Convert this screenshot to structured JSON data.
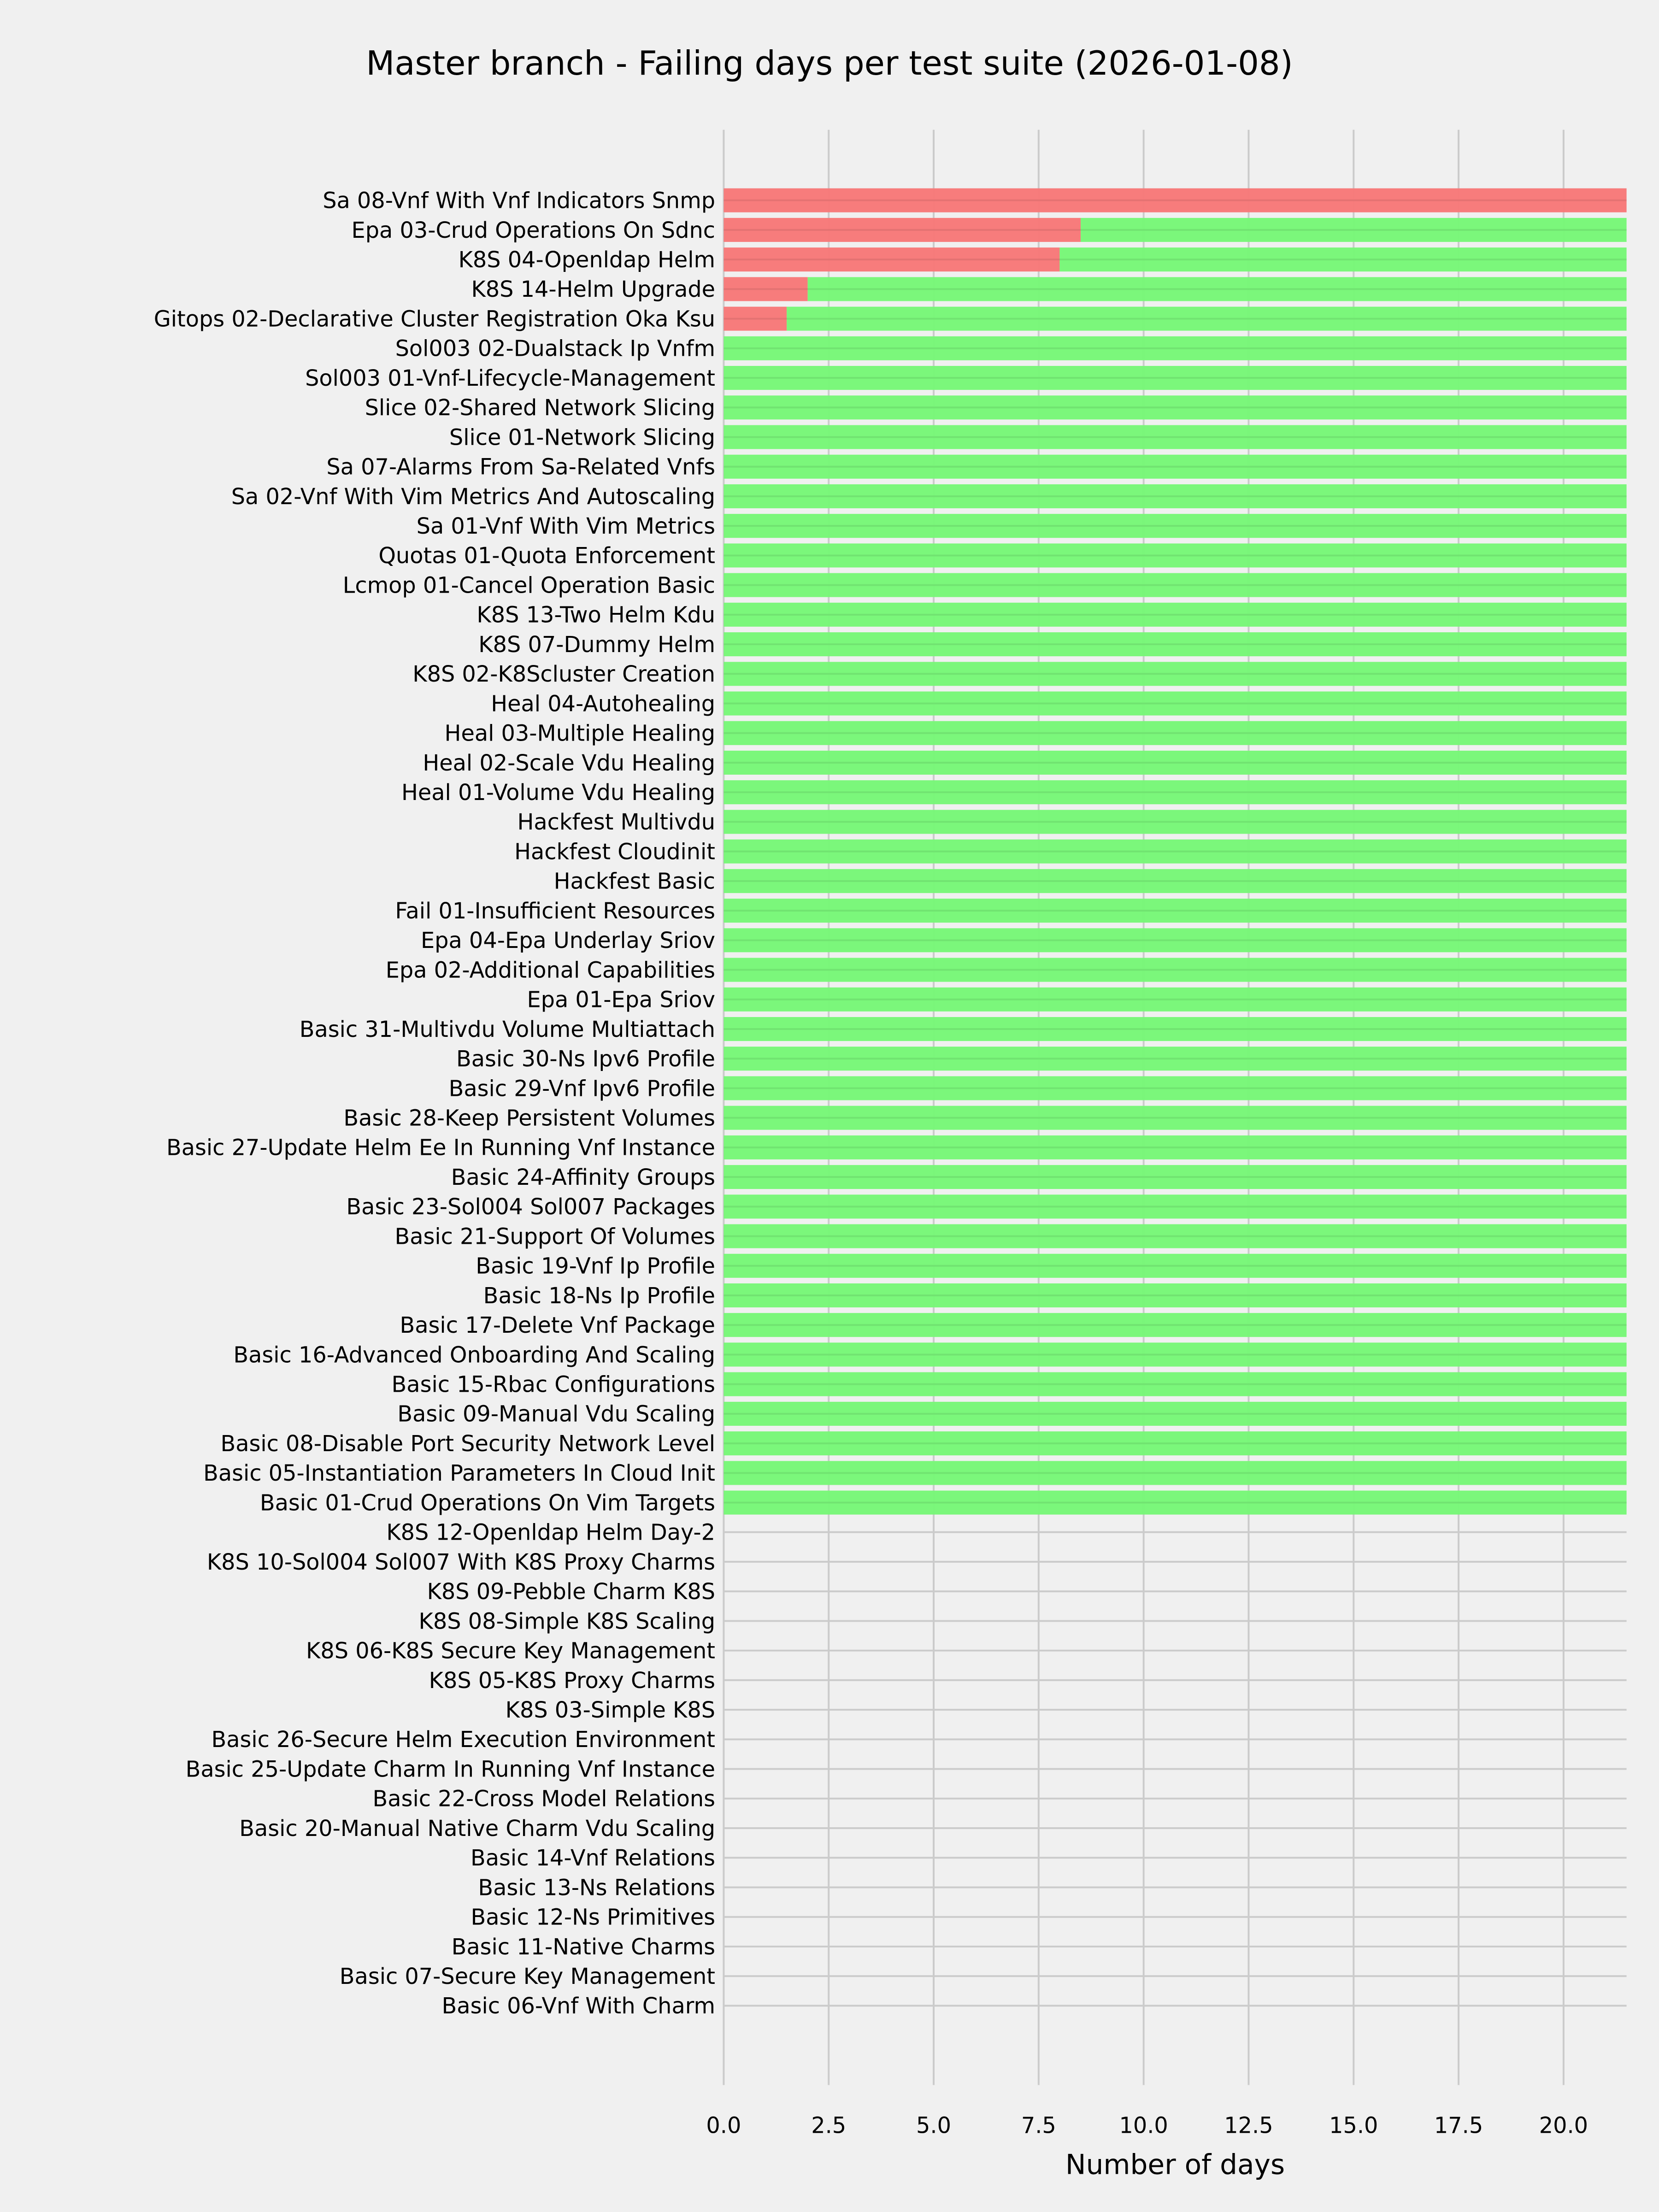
{
  "chart_data": {
    "type": "bar",
    "orientation": "horizontal",
    "stacked": true,
    "title": "Master branch - Failing days per test suite (2026-01-08)",
    "xlabel": "Number of days",
    "ylabel": "",
    "xlim": [
      0,
      21.5
    ],
    "xticks": [
      "0.0",
      "2.5",
      "5.0",
      "7.5",
      "10.0",
      "12.5",
      "15.0",
      "17.5",
      "20.0"
    ],
    "grid": true,
    "colors": {
      "failing": "#f77878",
      "passing": "#77f777",
      "background": "#f0f0f0",
      "grid": "#cbcbcb"
    },
    "categories": [
      "Sa 08-Vnf With Vnf Indicators Snmp",
      "Epa 03-Crud Operations On Sdnc",
      "K8S 04-Openldap Helm",
      "K8S 14-Helm Upgrade",
      "Gitops 02-Declarative Cluster Registration Oka Ksu",
      "Sol003 02-Dualstack Ip Vnfm",
      "Sol003 01-Vnf-Lifecycle-Management",
      "Slice 02-Shared Network Slicing",
      "Slice 01-Network Slicing",
      "Sa 07-Alarms From Sa-Related Vnfs",
      "Sa 02-Vnf With Vim Metrics And Autoscaling",
      "Sa 01-Vnf With Vim Metrics",
      "Quotas 01-Quota Enforcement",
      "Lcmop 01-Cancel Operation Basic",
      "K8S 13-Two Helm Kdu",
      "K8S 07-Dummy Helm",
      "K8S 02-K8Scluster Creation",
      "Heal 04-Autohealing",
      "Heal 03-Multiple Healing",
      "Heal 02-Scale Vdu Healing",
      "Heal 01-Volume Vdu Healing",
      "Hackfest Multivdu",
      "Hackfest Cloudinit",
      "Hackfest Basic",
      "Fail 01-Insufficient Resources",
      "Epa 04-Epa Underlay Sriov",
      "Epa 02-Additional Capabilities",
      "Epa 01-Epa Sriov",
      "Basic 31-Multivdu Volume Multiattach",
      "Basic 30-Ns Ipv6 Profile",
      "Basic 29-Vnf Ipv6 Profile",
      "Basic 28-Keep Persistent Volumes",
      "Basic 27-Update Helm Ee In Running Vnf Instance",
      "Basic 24-Affinity Groups",
      "Basic 23-Sol004 Sol007 Packages",
      "Basic 21-Support Of Volumes",
      "Basic 19-Vnf Ip Profile",
      "Basic 18-Ns Ip Profile",
      "Basic 17-Delete Vnf Package",
      "Basic 16-Advanced Onboarding And Scaling",
      "Basic 15-Rbac Configurations",
      "Basic 09-Manual Vdu Scaling",
      "Basic 08-Disable Port Security Network Level",
      "Basic 05-Instantiation Parameters In Cloud Init",
      "Basic 01-Crud Operations On Vim Targets",
      "K8S 12-Openldap Helm Day-2",
      "K8S 10-Sol004 Sol007 With K8S Proxy Charms",
      "K8S 09-Pebble Charm K8S",
      "K8S 08-Simple K8S Scaling",
      "K8S 06-K8S Secure Key Management",
      "K8S 05-K8S Proxy Charms",
      "K8S 03-Simple K8S",
      "Basic 26-Secure Helm Execution Environment",
      "Basic 25-Update Charm In Running Vnf Instance",
      "Basic 22-Cross Model Relations",
      "Basic 20-Manual Native Charm Vdu Scaling",
      "Basic 14-Vnf Relations",
      "Basic 13-Ns Relations",
      "Basic 12-Ns Primitives",
      "Basic 11-Native Charms",
      "Basic 07-Secure Key Management",
      "Basic 06-Vnf With Charm"
    ],
    "series": [
      {
        "key": "failing",
        "values": [
          21.5,
          8.5,
          8,
          2,
          1.5,
          0,
          0,
          0,
          0,
          0,
          0,
          0,
          0,
          0,
          0,
          0,
          0,
          0,
          0,
          0,
          0,
          0,
          0,
          0,
          0,
          0,
          0,
          0,
          0,
          0,
          0,
          0,
          0,
          0,
          0,
          0,
          0,
          0,
          0,
          0,
          0,
          0,
          0,
          0,
          0,
          0,
          0,
          0,
          0,
          0,
          0,
          0,
          0,
          0,
          0,
          0,
          0,
          0,
          0,
          0,
          0,
          0
        ]
      },
      {
        "key": "passing",
        "values": [
          0,
          13,
          13.5,
          19.5,
          20,
          21.5,
          21.5,
          21.5,
          21.5,
          21.5,
          21.5,
          21.5,
          21.5,
          21.5,
          21.5,
          21.5,
          21.5,
          21.5,
          21.5,
          21.5,
          21.5,
          21.5,
          21.5,
          21.5,
          21.5,
          21.5,
          21.5,
          21.5,
          21.5,
          21.5,
          21.5,
          21.5,
          21.5,
          21.5,
          21.5,
          21.5,
          21.5,
          21.5,
          21.5,
          21.5,
          21.5,
          21.5,
          21.5,
          21.5,
          21.5,
          0,
          0,
          0,
          0,
          0,
          0,
          0,
          0,
          0,
          0,
          0,
          0,
          0,
          0,
          0,
          0,
          0
        ]
      }
    ]
  }
}
